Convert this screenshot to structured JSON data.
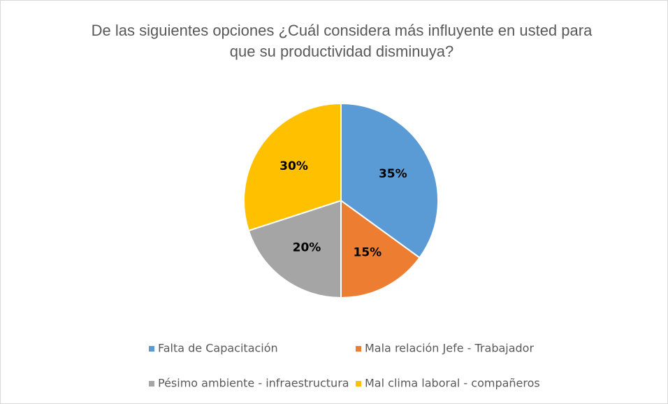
{
  "chart_data": {
    "type": "pie",
    "title": "De las siguientes opciones ¿Cuál considera más influyente en usted para que su productividad disminuya?",
    "categories": [
      "Falta de Capacitación",
      "Mala relación Jefe - Trabajador",
      "Pésimo ambiente - infraestructura",
      "Mal clima laboral - compañeros"
    ],
    "values": [
      35,
      15,
      20,
      30
    ],
    "value_labels": [
      "35%",
      "15%",
      "20%",
      "30%"
    ],
    "colors": [
      "#5b9bd5",
      "#ed7d31",
      "#a5a5a5",
      "#ffc000"
    ],
    "legend": "bottom"
  }
}
